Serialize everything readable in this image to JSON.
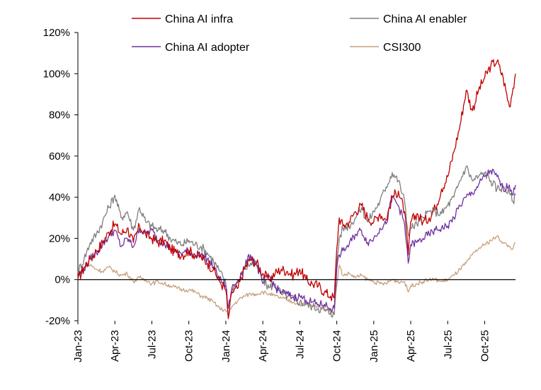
{
  "chart_data": {
    "type": "line",
    "title": "",
    "xlabel": "",
    "ylabel": "",
    "ylim": [
      -20,
      120
    ],
    "y_ticks": [
      -20,
      0,
      20,
      40,
      60,
      80,
      100,
      120
    ],
    "y_tick_labels": [
      "-20%",
      "0%",
      "20%",
      "40%",
      "60%",
      "80%",
      "100%",
      "120%"
    ],
    "x_range_months": [
      0,
      35.5
    ],
    "x_ticks": [
      {
        "label": "Jan-23",
        "month": 0
      },
      {
        "label": "Apr-23",
        "month": 3
      },
      {
        "label": "Jul-23",
        "month": 6
      },
      {
        "label": "Oct-23",
        "month": 9
      },
      {
        "label": "Jan-24",
        "month": 12
      },
      {
        "label": "Apr-24",
        "month": 15
      },
      {
        "label": "Jul-24",
        "month": 18
      },
      {
        "label": "Oct-24",
        "month": 21
      },
      {
        "label": "Jan-25",
        "month": 24
      },
      {
        "label": "Apr-25",
        "month": 27
      },
      {
        "label": "Jul-25",
        "month": 30
      },
      {
        "label": "Oct-25",
        "month": 33
      }
    ],
    "legend_position": "top",
    "series": [
      {
        "name": "China AI infra",
        "color": "#C00000",
        "points": [
          [
            0,
            0
          ],
          [
            0.5,
            6
          ],
          [
            1,
            10
          ],
          [
            1.5,
            14
          ],
          [
            2,
            18
          ],
          [
            2.5,
            23
          ],
          [
            3,
            27
          ],
          [
            3.5,
            22
          ],
          [
            4,
            25
          ],
          [
            4.5,
            18
          ],
          [
            5,
            26
          ],
          [
            5.5,
            22
          ],
          [
            6,
            20
          ],
          [
            6.5,
            18
          ],
          [
            7,
            19
          ],
          [
            7.5,
            15
          ],
          [
            8,
            13
          ],
          [
            8.5,
            12
          ],
          [
            9,
            14
          ],
          [
            9.5,
            12
          ],
          [
            10,
            11
          ],
          [
            10.5,
            8
          ],
          [
            11,
            5
          ],
          [
            11.5,
            -1
          ],
          [
            12,
            -5
          ],
          [
            12.2,
            -19
          ],
          [
            12.5,
            -6
          ],
          [
            13,
            -4
          ],
          [
            13.5,
            5
          ],
          [
            14,
            10
          ],
          [
            14.5,
            8
          ],
          [
            15,
            3
          ],
          [
            15.5,
            0
          ],
          [
            16,
            3
          ],
          [
            16.5,
            5
          ],
          [
            17,
            4
          ],
          [
            17.5,
            2
          ],
          [
            18,
            5
          ],
          [
            18.5,
            0
          ],
          [
            19,
            -2
          ],
          [
            19.5,
            -3
          ],
          [
            20,
            -6
          ],
          [
            20.5,
            -8
          ],
          [
            20.8,
            -9
          ],
          [
            21,
            15
          ],
          [
            21.2,
            30
          ],
          [
            21.5,
            26
          ],
          [
            22,
            28
          ],
          [
            22.5,
            33
          ],
          [
            23,
            36
          ],
          [
            23.5,
            30
          ],
          [
            24,
            28
          ],
          [
            24.5,
            32
          ],
          [
            25,
            29
          ],
          [
            25.5,
            40
          ],
          [
            26,
            43
          ],
          [
            26.5,
            33
          ],
          [
            26.8,
            12
          ],
          [
            27,
            28
          ],
          [
            27.5,
            32
          ],
          [
            28,
            28
          ],
          [
            28.5,
            30
          ],
          [
            29,
            35
          ],
          [
            29.5,
            44
          ],
          [
            30,
            50
          ],
          [
            30.5,
            62
          ],
          [
            31,
            75
          ],
          [
            31.5,
            92
          ],
          [
            32,
            82
          ],
          [
            32.5,
            92
          ],
          [
            33,
            98
          ],
          [
            33.5,
            104
          ],
          [
            34,
            106
          ],
          [
            34.5,
            98
          ],
          [
            35,
            84
          ],
          [
            35.3,
            93
          ],
          [
            35.5,
            100
          ]
        ]
      },
      {
        "name": "China AI enabler",
        "color": "#7F7F7F",
        "points": [
          [
            0,
            4
          ],
          [
            0.5,
            10
          ],
          [
            1,
            18
          ],
          [
            1.5,
            22
          ],
          [
            2,
            28
          ],
          [
            2.5,
            35
          ],
          [
            3,
            41
          ],
          [
            3.5,
            30
          ],
          [
            4,
            33
          ],
          [
            4.5,
            24
          ],
          [
            5,
            35
          ],
          [
            5.5,
            28
          ],
          [
            6,
            26
          ],
          [
            6.5,
            24
          ],
          [
            7,
            24
          ],
          [
            7.5,
            20
          ],
          [
            8,
            18
          ],
          [
            8.5,
            17
          ],
          [
            9,
            19
          ],
          [
            9.5,
            17
          ],
          [
            10,
            16
          ],
          [
            10.5,
            13
          ],
          [
            11,
            9
          ],
          [
            11.5,
            4
          ],
          [
            12,
            -2
          ],
          [
            12.2,
            -18
          ],
          [
            12.5,
            -4
          ],
          [
            13,
            -1
          ],
          [
            13.5,
            5
          ],
          [
            14,
            8
          ],
          [
            14.5,
            7
          ],
          [
            15,
            0
          ],
          [
            15.5,
            -4
          ],
          [
            16,
            -2
          ],
          [
            16.5,
            -7
          ],
          [
            17,
            -8
          ],
          [
            17.5,
            -9
          ],
          [
            18,
            -11
          ],
          [
            18.5,
            -12
          ],
          [
            19,
            -13
          ],
          [
            19.5,
            -14
          ],
          [
            20,
            -15
          ],
          [
            20.5,
            -16
          ],
          [
            20.8,
            -17
          ],
          [
            21,
            8
          ],
          [
            21.2,
            20
          ],
          [
            21.5,
            25
          ],
          [
            22,
            26
          ],
          [
            22.5,
            30
          ],
          [
            23,
            35
          ],
          [
            23.5,
            28
          ],
          [
            24,
            33
          ],
          [
            24.5,
            38
          ],
          [
            25,
            45
          ],
          [
            25.5,
            52
          ],
          [
            26,
            48
          ],
          [
            26.5,
            38
          ],
          [
            26.8,
            22
          ],
          [
            27,
            25
          ],
          [
            27.5,
            27
          ],
          [
            28,
            30
          ],
          [
            28.5,
            33
          ],
          [
            29,
            33
          ],
          [
            29.5,
            32
          ],
          [
            30,
            36
          ],
          [
            30.5,
            40
          ],
          [
            31,
            48
          ],
          [
            31.5,
            55
          ],
          [
            32,
            48
          ],
          [
            32.5,
            50
          ],
          [
            33,
            52
          ],
          [
            33.5,
            48
          ],
          [
            34,
            44
          ],
          [
            34.5,
            45
          ],
          [
            35,
            42
          ],
          [
            35.3,
            38
          ],
          [
            35.5,
            41
          ]
        ]
      },
      {
        "name": "China AI adopter",
        "color": "#7030A0",
        "points": [
          [
            0,
            2
          ],
          [
            0.5,
            5
          ],
          [
            1,
            10
          ],
          [
            1.5,
            13
          ],
          [
            2,
            17
          ],
          [
            2.5,
            21
          ],
          [
            3,
            24
          ],
          [
            3.5,
            16
          ],
          [
            4,
            20
          ],
          [
            4.5,
            16
          ],
          [
            5,
            25
          ],
          [
            5.5,
            22
          ],
          [
            6,
            24
          ],
          [
            6.5,
            19
          ],
          [
            7,
            18
          ],
          [
            7.5,
            15
          ],
          [
            8,
            13
          ],
          [
            8.5,
            13
          ],
          [
            9,
            14
          ],
          [
            9.5,
            12
          ],
          [
            10,
            12
          ],
          [
            10.5,
            10
          ],
          [
            11,
            6
          ],
          [
            11.5,
            0
          ],
          [
            12,
            -3
          ],
          [
            12.2,
            -14
          ],
          [
            12.5,
            -4
          ],
          [
            13,
            0
          ],
          [
            13.5,
            6
          ],
          [
            14,
            12
          ],
          [
            14.5,
            7
          ],
          [
            15,
            -2
          ],
          [
            15.5,
            2
          ],
          [
            16,
            -4
          ],
          [
            16.5,
            -6
          ],
          [
            17,
            -7
          ],
          [
            17.5,
            -9
          ],
          [
            18,
            -8
          ],
          [
            18.5,
            -10
          ],
          [
            19,
            -11
          ],
          [
            19.5,
            -12
          ],
          [
            20,
            -12
          ],
          [
            20.5,
            -14
          ],
          [
            20.8,
            -14
          ],
          [
            21,
            5
          ],
          [
            21.2,
            12
          ],
          [
            21.5,
            14
          ],
          [
            22,
            17
          ],
          [
            22.5,
            22
          ],
          [
            23,
            24
          ],
          [
            23.5,
            18
          ],
          [
            24,
            20
          ],
          [
            24.5,
            25
          ],
          [
            25,
            27
          ],
          [
            25.5,
            40
          ],
          [
            26,
            36
          ],
          [
            26.5,
            27
          ],
          [
            26.8,
            8
          ],
          [
            27,
            17
          ],
          [
            27.5,
            18
          ],
          [
            28,
            20
          ],
          [
            28.5,
            22
          ],
          [
            29,
            24
          ],
          [
            29.5,
            25
          ],
          [
            30,
            26
          ],
          [
            30.5,
            30
          ],
          [
            31,
            36
          ],
          [
            31.5,
            40
          ],
          [
            32,
            42
          ],
          [
            32.5,
            46
          ],
          [
            33,
            50
          ],
          [
            33.5,
            53
          ],
          [
            34,
            50
          ],
          [
            34.5,
            44
          ],
          [
            35,
            46
          ],
          [
            35.3,
            41
          ],
          [
            35.5,
            46
          ]
        ]
      },
      {
        "name": "CSI300",
        "color": "#C8A07C",
        "points": [
          [
            0,
            3
          ],
          [
            0.5,
            6
          ],
          [
            1,
            7
          ],
          [
            1.5,
            5
          ],
          [
            2,
            4
          ],
          [
            2.5,
            6
          ],
          [
            3,
            4
          ],
          [
            3.5,
            2
          ],
          [
            4,
            3
          ],
          [
            4.5,
            -1
          ],
          [
            5,
            1
          ],
          [
            5.5,
            0
          ],
          [
            6,
            -2
          ],
          [
            6.5,
            -1
          ],
          [
            7,
            -2
          ],
          [
            7.5,
            -3
          ],
          [
            8,
            -4
          ],
          [
            8.5,
            -5
          ],
          [
            9,
            -5
          ],
          [
            9.5,
            -6
          ],
          [
            10,
            -8
          ],
          [
            10.5,
            -9
          ],
          [
            11,
            -11
          ],
          [
            11.5,
            -14
          ],
          [
            12,
            -15
          ],
          [
            12.2,
            -17
          ],
          [
            12.5,
            -13
          ],
          [
            13,
            -10
          ],
          [
            13.5,
            -8
          ],
          [
            14,
            -7
          ],
          [
            14.5,
            -7
          ],
          [
            15,
            -6
          ],
          [
            15.5,
            -7
          ],
          [
            16,
            -8
          ],
          [
            16.5,
            -9
          ],
          [
            17,
            -10
          ],
          [
            17.5,
            -11
          ],
          [
            18,
            -12
          ],
          [
            18.5,
            -12
          ],
          [
            19,
            -13
          ],
          [
            19.5,
            -13
          ],
          [
            20,
            -14
          ],
          [
            20.5,
            -15
          ],
          [
            20.8,
            -16
          ],
          [
            21,
            -3
          ],
          [
            21.2,
            7
          ],
          [
            21.5,
            2
          ],
          [
            22,
            3
          ],
          [
            22.5,
            1
          ],
          [
            23,
            2
          ],
          [
            23.5,
            0
          ],
          [
            24,
            -1
          ],
          [
            24.5,
            -2
          ],
          [
            25,
            -2
          ],
          [
            25.5,
            0
          ],
          [
            26,
            -1
          ],
          [
            26.5,
            -1
          ],
          [
            26.8,
            -6
          ],
          [
            27,
            -3
          ],
          [
            27.5,
            -2
          ],
          [
            28,
            -1
          ],
          [
            28.5,
            0
          ],
          [
            29,
            0
          ],
          [
            29.5,
            -1
          ],
          [
            30,
            0
          ],
          [
            30.5,
            2
          ],
          [
            31,
            5
          ],
          [
            31.5,
            8
          ],
          [
            32,
            12
          ],
          [
            32.5,
            15
          ],
          [
            33,
            17
          ],
          [
            33.5,
            19
          ],
          [
            34,
            21
          ],
          [
            34.5,
            18
          ],
          [
            35,
            16
          ],
          [
            35.3,
            15
          ],
          [
            35.5,
            18
          ]
        ]
      }
    ]
  }
}
